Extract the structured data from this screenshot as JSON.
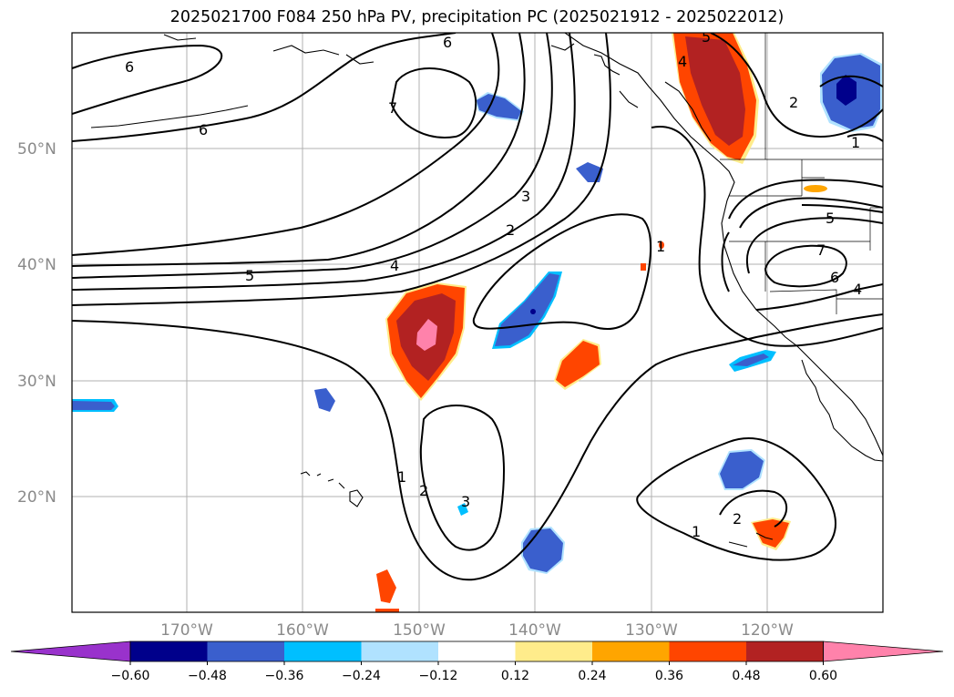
{
  "title": "2025021700 F084 250 hPa PV, precipitation PC (2025021912 - 2025022012)",
  "lat_labels": [
    "50°N",
    "40°N",
    "30°N",
    "20°N"
  ],
  "lon_labels": [
    "170°W",
    "160°W",
    "150°W",
    "140°W",
    "130°W",
    "120°W"
  ],
  "contour_labels": [
    "6",
    "6",
    "6",
    "7",
    "5",
    "4",
    "3",
    "2",
    "1",
    "1",
    "2",
    "3",
    "5",
    "6",
    "7",
    "4",
    "2",
    "1",
    "1",
    "2",
    "4",
    "5"
  ],
  "colorbar": {
    "ticks": [
      "−0.60",
      "−0.48",
      "−0.36",
      "−0.24",
      "−0.12",
      "0.12",
      "0.24",
      "0.36",
      "0.48",
      "0.60"
    ],
    "colors": [
      "#9932cc",
      "#00008b",
      "#3a5fcd",
      "#00bfff",
      "#b0e2ff",
      "#ffffff",
      "#ffec8b",
      "#ffa500",
      "#ff4500",
      "#b22222",
      "#ff82ab"
    ]
  }
}
